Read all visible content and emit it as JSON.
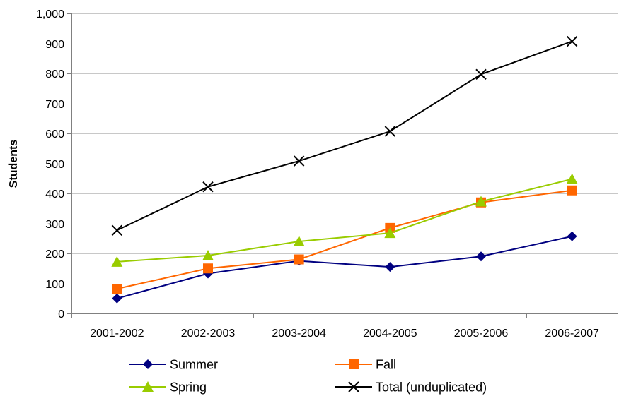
{
  "chart_data": {
    "type": "line",
    "title": "",
    "xlabel": "",
    "ylabel": "Students",
    "ylim": [
      0,
      1000
    ],
    "yticks": [
      0,
      100,
      200,
      300,
      400,
      500,
      600,
      700,
      800,
      900,
      1000
    ],
    "ytick_labels": [
      "0",
      "100",
      "200",
      "300",
      "400",
      "500",
      "600",
      "700",
      "800",
      "900",
      "1,000"
    ],
    "grid": true,
    "legend_position": "bottom",
    "categories": [
      "2001-2002",
      "2002-2003",
      "2003-2004",
      "2004-2005",
      "2005-2006",
      "2006-2007"
    ],
    "series": [
      {
        "name": "Summer",
        "values": [
          50,
          133,
          175,
          155,
          190,
          257
        ],
        "color": "#000080",
        "marker": "diamond"
      },
      {
        "name": "Fall",
        "values": [
          82,
          150,
          180,
          285,
          370,
          410
        ],
        "color": "#FF6600",
        "marker": "square"
      },
      {
        "name": "Spring",
        "values": [
          172,
          193,
          240,
          268,
          373,
          448
        ],
        "color": "#99CC00",
        "marker": "triangle"
      },
      {
        "name": "Total (unduplicated)",
        "values": [
          277,
          422,
          508,
          607,
          797,
          907
        ],
        "color": "#000000",
        "marker": "x"
      }
    ]
  }
}
